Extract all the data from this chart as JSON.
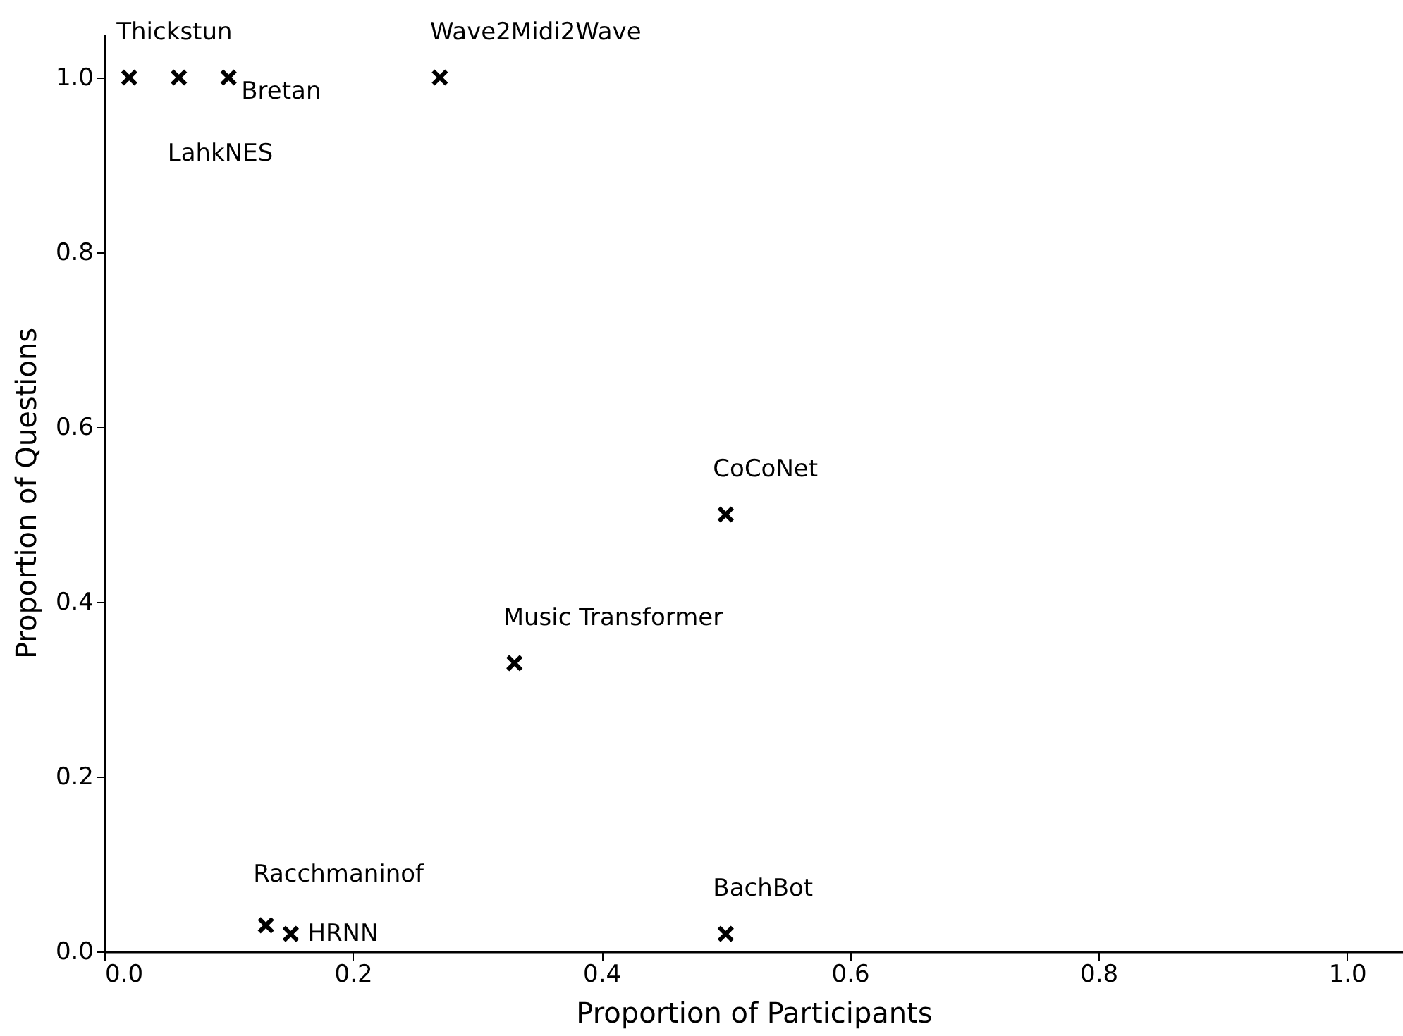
{
  "chart_data": {
    "type": "scatter",
    "xlabel": "Proportion of Participants",
    "ylabel": "Proportion of Questions",
    "x": [
      0.02,
      0.06,
      0.1,
      0.27,
      0.5,
      0.33,
      0.13,
      0.15,
      0.5
    ],
    "series": [
      {
        "color": "#000000",
        "values": [
          1.0,
          1.0,
          1.0,
          1.0,
          0.5,
          0.33,
          0.03,
          0.02,
          0.02
        ]
      }
    ],
    "marker": "cross",
    "grid": false,
    "xlim": [
      0,
      1.045
    ],
    "ylim": [
      0,
      1.05
    ],
    "xticks": [
      {
        "value": 0,
        "label": "0.0"
      },
      {
        "value": 0.2,
        "label": "0.2"
      },
      {
        "value": 0.4,
        "label": "0.4"
      },
      {
        "value": 0.6,
        "label": "0.6"
      },
      {
        "value": 0.8,
        "label": "0.8"
      },
      {
        "value": 1,
        "label": "1.0"
      }
    ],
    "yticks": [
      {
        "value": 0,
        "label": "0.0"
      },
      {
        "value": 0.2,
        "label": "0.2"
      },
      {
        "value": 0.4,
        "label": "0.4"
      },
      {
        "value": 0.6,
        "label": "0.6"
      },
      {
        "value": 0.8,
        "label": "0.8"
      },
      {
        "value": 1,
        "label": "1.0"
      }
    ],
    "annotations": [
      {
        "text": "Thickstun",
        "x": 0.02,
        "y": 1.0
      },
      {
        "text": "LahkNES",
        "x": 0.06,
        "y": 1.0
      },
      {
        "text": "Bretan",
        "x": 0.1,
        "y": 1.0
      },
      {
        "text": "Wave2Midi2Wave",
        "x": 0.27,
        "y": 1.0
      },
      {
        "text": "CoCoNet",
        "x": 0.5,
        "y": 0.5
      },
      {
        "text": "Music Transformer",
        "x": 0.33,
        "y": 0.33
      },
      {
        "text": "Racchmaninof",
        "x": 0.13,
        "y": 0.03
      },
      {
        "text": "HRNN",
        "x": 0.15,
        "y": 0.02
      },
      {
        "text": "BachBot",
        "x": 0.5,
        "y": 0.02
      }
    ]
  }
}
